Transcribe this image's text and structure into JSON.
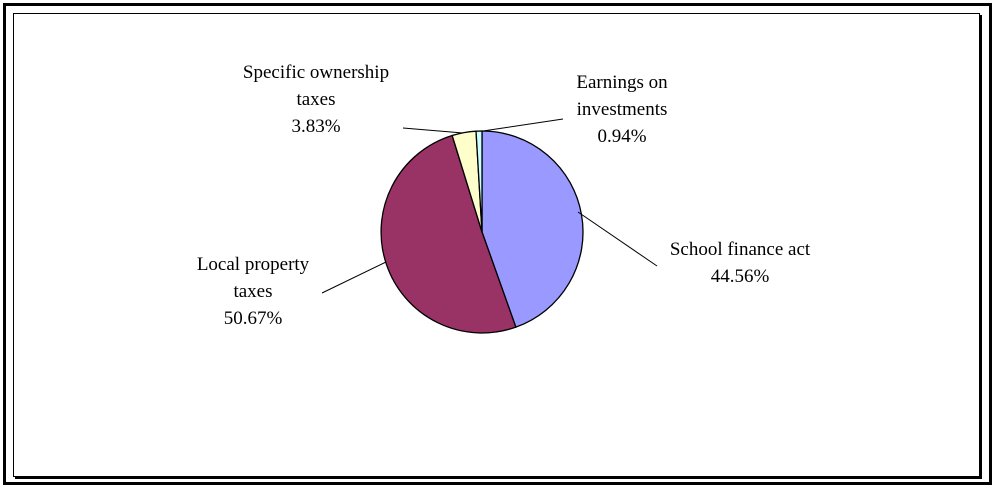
{
  "chart_data": {
    "type": "pie",
    "start_angle_deg": 0,
    "direction": "clockwise",
    "slices": [
      {
        "label_lines": [
          "School finance act"
        ],
        "value_label": "44.56%",
        "value": 44.56,
        "color": "#9999ff"
      },
      {
        "label_lines": [
          "Local property",
          "taxes"
        ],
        "value_label": "50.67%",
        "value": 50.67,
        "color": "#993366"
      },
      {
        "label_lines": [
          "Specific ownership",
          "taxes"
        ],
        "value_label": "3.83%",
        "value": 3.83,
        "color": "#ffffcc"
      },
      {
        "label_lines": [
          "Earnings on",
          "investments"
        ],
        "value_label": "0.94%",
        "value": 0.94,
        "color": "#ccffff"
      }
    ]
  }
}
